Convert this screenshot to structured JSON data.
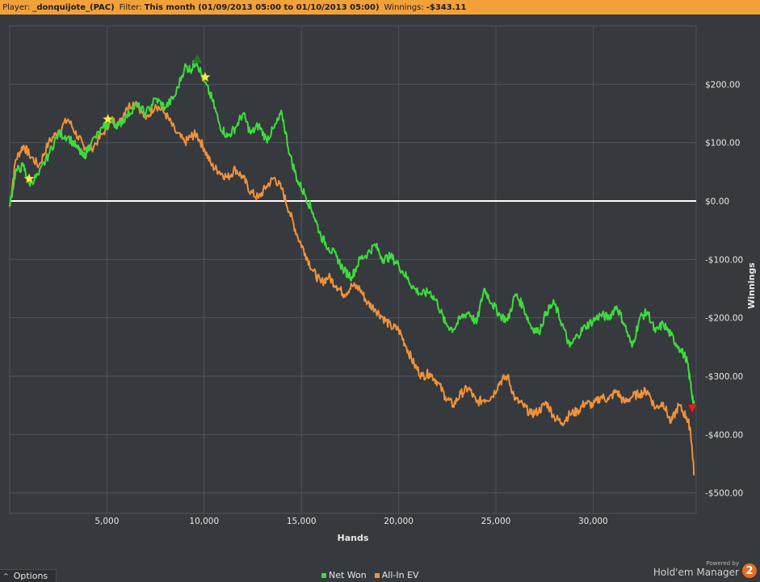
{
  "header": {
    "player_label": "Player:",
    "player_value": "_donquijote_(PAC)",
    "filter_label": "Filter:",
    "filter_value": "This month (01/09/2013 05:00 to 01/10/2013 05:00)",
    "winnings_label": "Winnings:",
    "winnings_value": "-$343.11"
  },
  "options": {
    "label": "Options",
    "arrow": "^"
  },
  "legend": [
    {
      "label": "Net Won",
      "color": "#3ddc3d"
    },
    {
      "label": "All-In EV",
      "color": "#f0923a"
    }
  ],
  "brand": {
    "powered": "Powered by",
    "name": "Hold'em Manager",
    "badge": "2"
  },
  "colors": {
    "background": "#36393e",
    "grid": "#50545a",
    "net_won": "#3ddc3d",
    "all_in_ev": "#f0923a",
    "zero_line": "#ffffff",
    "max_marker": "#1e7b1e",
    "min_marker": "#e02020",
    "star": "#ffe94a"
  },
  "chart_data": {
    "type": "line",
    "xlabel": "Hands",
    "ylabel": "Winnings",
    "xlim": [
      0,
      35300
    ],
    "ylim": [
      -535,
      300
    ],
    "x_ticks": [
      5000,
      10000,
      15000,
      20000,
      25000,
      30000
    ],
    "x_tick_labels": [
      "5,000",
      "10,000",
      "15,000",
      "20,000",
      "25,000",
      "30,000"
    ],
    "y_ticks": [
      200,
      100,
      0,
      -100,
      -200,
      -300,
      -400,
      -500
    ],
    "y_tick_labels": [
      "$200.00",
      "$100.00",
      "$0.00",
      "-$100.00",
      "-$200.00",
      "-$300.00",
      "-$400.00",
      "-$500.00"
    ],
    "grid": true,
    "legend_position": "bottom-center",
    "series": [
      {
        "name": "Net Won",
        "color": "#3ddc3d",
        "x": [
          0,
          300,
          700,
          1000,
          1500,
          2000,
          2500,
          3000,
          3500,
          3800,
          4200,
          4800,
          5200,
          5600,
          6000,
          6500,
          7000,
          7500,
          8000,
          8500,
          9000,
          9300,
          9600,
          10000,
          10400,
          10800,
          11200,
          11600,
          12000,
          12400,
          12800,
          13200,
          13600,
          14000,
          14400,
          14800,
          15200,
          15600,
          16000,
          16400,
          16800,
          17200,
          17600,
          18000,
          18400,
          18800,
          19200,
          19600,
          20000,
          20400,
          20800,
          21200,
          21600,
          22000,
          22400,
          22800,
          23200,
          23600,
          24000,
          24400,
          24800,
          25200,
          25600,
          26000,
          26400,
          26800,
          27200,
          27600,
          28000,
          28400,
          28800,
          29200,
          29600,
          30000,
          30400,
          30800,
          31200,
          31600,
          32000,
          32400,
          32800,
          33200,
          33600,
          34000,
          34400,
          34800,
          35000,
          35200
        ],
        "y": [
          -10,
          50,
          60,
          30,
          45,
          80,
          115,
          110,
          90,
          75,
          100,
          125,
          135,
          130,
          145,
          165,
          150,
          175,
          160,
          180,
          230,
          225,
          240,
          205,
          175,
          130,
          110,
          125,
          150,
          115,
          130,
          105,
          125,
          150,
          80,
          35,
          10,
          -20,
          -60,
          -80,
          -95,
          -120,
          -130,
          -100,
          -90,
          -75,
          -100,
          -95,
          -110,
          -130,
          -150,
          -160,
          -155,
          -175,
          -210,
          -220,
          -200,
          -190,
          -210,
          -150,
          -175,
          -195,
          -205,
          -160,
          -180,
          -215,
          -225,
          -190,
          -175,
          -210,
          -250,
          -230,
          -215,
          -205,
          -195,
          -200,
          -180,
          -210,
          -250,
          -200,
          -190,
          -225,
          -210,
          -230,
          -250,
          -270,
          -310,
          -355
        ]
      },
      {
        "name": "All-In EV",
        "color": "#f0923a",
        "x": [
          0,
          300,
          700,
          1000,
          1500,
          2000,
          2500,
          3000,
          3500,
          3800,
          4200,
          4800,
          5200,
          5600,
          6000,
          6500,
          7000,
          7500,
          8000,
          8500,
          9000,
          9300,
          9600,
          10000,
          10400,
          10800,
          11200,
          11600,
          12000,
          12400,
          12800,
          13200,
          13600,
          14000,
          14400,
          14800,
          15200,
          15600,
          16000,
          16400,
          16800,
          17200,
          17600,
          18000,
          18400,
          18800,
          19200,
          19600,
          20000,
          20400,
          20800,
          21200,
          21600,
          22000,
          22400,
          22800,
          23200,
          23600,
          24000,
          24400,
          24800,
          25200,
          25600,
          26000,
          26400,
          26800,
          27200,
          27600,
          28000,
          28400,
          28800,
          29200,
          29600,
          30000,
          30400,
          30800,
          31200,
          31600,
          32000,
          32400,
          32800,
          33200,
          33600,
          34000,
          34400,
          34800,
          35000,
          35200
        ],
        "y": [
          -10,
          70,
          95,
          80,
          60,
          100,
          120,
          140,
          110,
          95,
          90,
          115,
          140,
          130,
          160,
          170,
          140,
          165,
          150,
          120,
          100,
          110,
          115,
          90,
          60,
          50,
          40,
          55,
          40,
          15,
          5,
          25,
          40,
          20,
          -20,
          -60,
          -90,
          -120,
          -140,
          -130,
          -145,
          -160,
          -145,
          -150,
          -175,
          -185,
          -200,
          -215,
          -220,
          -250,
          -280,
          -300,
          -295,
          -310,
          -335,
          -350,
          -330,
          -320,
          -345,
          -340,
          -335,
          -310,
          -300,
          -340,
          -350,
          -365,
          -360,
          -345,
          -370,
          -380,
          -365,
          -360,
          -345,
          -350,
          -335,
          -340,
          -325,
          -345,
          -335,
          -330,
          -325,
          -355,
          -345,
          -380,
          -350,
          -370,
          -390,
          -470
        ]
      }
    ],
    "max_marker": {
      "x": 9650,
      "y": 243
    },
    "min_marker": {
      "x": 35100,
      "y": -355
    },
    "stars": [
      {
        "x": 1000,
        "y": 38
      },
      {
        "x": 5050,
        "y": 140
      },
      {
        "x": 10050,
        "y": 212
      }
    ]
  }
}
